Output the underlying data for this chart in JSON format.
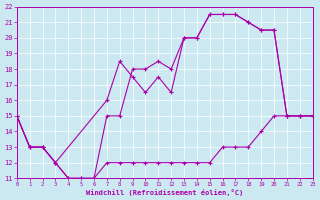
{
  "xlabel": "Windchill (Refroidissement éolien,°C)",
  "bg_color": "#cce8f0",
  "line_color": "#aa00aa",
  "xlim": [
    0,
    23
  ],
  "ylim": [
    11,
    22
  ],
  "xticks": [
    0,
    1,
    2,
    3,
    4,
    5,
    6,
    7,
    8,
    9,
    10,
    11,
    12,
    13,
    14,
    15,
    16,
    17,
    18,
    19,
    20,
    21,
    22,
    23
  ],
  "yticks": [
    11,
    12,
    13,
    14,
    15,
    16,
    17,
    18,
    19,
    20,
    21,
    22
  ],
  "series1_x": [
    0,
    1,
    2,
    3,
    4,
    5,
    6,
    7,
    8,
    9,
    10,
    11,
    12,
    13,
    14,
    15,
    16,
    17,
    18,
    19,
    20,
    21,
    22,
    23
  ],
  "series1_y": [
    15,
    13,
    13,
    12,
    11,
    11,
    11,
    12,
    12,
    12,
    12,
    12,
    12,
    12,
    12,
    12,
    13,
    13,
    13,
    14,
    15,
    15,
    15,
    15
  ],
  "series2_x": [
    0,
    1,
    2,
    3,
    4,
    5,
    6,
    7,
    8,
    9,
    10,
    11,
    12,
    13,
    14,
    15,
    16,
    17,
    18,
    19,
    20,
    21,
    22,
    23
  ],
  "series2_y": [
    15,
    13,
    13,
    12,
    11,
    11,
    11,
    15,
    15,
    18,
    18,
    18.5,
    18,
    20,
    20,
    21.5,
    21.5,
    21.5,
    21,
    20.5,
    20.5,
    15,
    15,
    15
  ],
  "series3_x": [
    0,
    1,
    2,
    3,
    7,
    8,
    9,
    10,
    11,
    12,
    13,
    14,
    15,
    16,
    17,
    18,
    19,
    20,
    21,
    22,
    23
  ],
  "series3_y": [
    15,
    13,
    13,
    12,
    16,
    18.5,
    17.5,
    16.5,
    17.5,
    16.5,
    20,
    20,
    21.5,
    21.5,
    21.5,
    21,
    20.5,
    20.5,
    15,
    15,
    15
  ]
}
